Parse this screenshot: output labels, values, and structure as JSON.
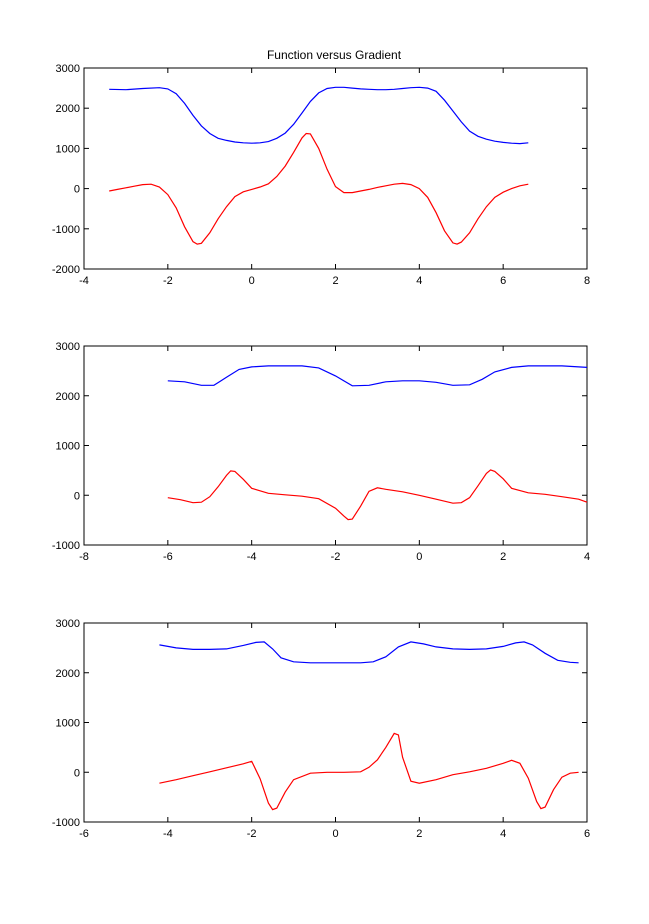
{
  "figure": {
    "title": "Function versus Gradient"
  },
  "colors": {
    "function_series": "#0000ff",
    "gradient_series": "#ff0000",
    "background": "#ffffff",
    "axes": "#000000"
  },
  "chart_data": [
    {
      "type": "line",
      "title": "Function versus Gradient",
      "xlabel": "",
      "ylabel": "",
      "xlim": [
        -4,
        8
      ],
      "ylim": [
        -2000,
        3000
      ],
      "xticks": [
        "-4",
        "-2",
        "0",
        "2",
        "4",
        "6",
        "8"
      ],
      "yticks": [
        "-2000",
        "-1000",
        "0",
        "1000",
        "2000",
        "3000"
      ],
      "grid": false,
      "legend": "none",
      "series": [
        {
          "color": "#0000ff",
          "x": [
            -3.4,
            -3.0,
            -2.6,
            -2.2,
            -2.0,
            -1.8,
            -1.6,
            -1.4,
            -1.2,
            -1.0,
            -0.8,
            -0.6,
            -0.4,
            -0.2,
            0.0,
            0.2,
            0.4,
            0.6,
            0.8,
            1.0,
            1.2,
            1.4,
            1.6,
            1.8,
            2.0,
            2.2,
            2.4,
            2.6,
            2.8,
            3.0,
            3.2,
            3.4,
            3.6,
            3.8,
            4.0,
            4.2,
            4.4,
            4.6,
            4.8,
            5.0,
            5.2,
            5.4,
            5.6,
            5.8,
            6.0,
            6.2,
            6.4,
            6.6
          ],
          "y": [
            2470,
            2460,
            2490,
            2510,
            2480,
            2360,
            2120,
            1820,
            1560,
            1370,
            1250,
            1200,
            1160,
            1140,
            1130,
            1140,
            1170,
            1250,
            1380,
            1600,
            1880,
            2170,
            2380,
            2490,
            2520,
            2520,
            2500,
            2480,
            2470,
            2460,
            2460,
            2470,
            2490,
            2510,
            2520,
            2500,
            2420,
            2200,
            1930,
            1660,
            1430,
            1300,
            1230,
            1180,
            1150,
            1130,
            1120,
            1140
          ]
        },
        {
          "color": "#ff0000",
          "x": [
            -3.4,
            -3.2,
            -3.0,
            -2.8,
            -2.6,
            -2.4,
            -2.2,
            -2.0,
            -1.8,
            -1.6,
            -1.4,
            -1.3,
            -1.2,
            -1.0,
            -0.8,
            -0.6,
            -0.4,
            -0.2,
            0.0,
            0.2,
            0.4,
            0.6,
            0.8,
            1.0,
            1.2,
            1.3,
            1.4,
            1.6,
            1.8,
            2.0,
            2.2,
            2.4,
            2.6,
            2.8,
            3.0,
            3.2,
            3.4,
            3.6,
            3.8,
            4.0,
            4.2,
            4.4,
            4.6,
            4.8,
            4.9,
            5.0,
            5.2,
            5.4,
            5.6,
            5.8,
            6.0,
            6.2,
            6.4,
            6.6
          ],
          "y": [
            -60,
            -20,
            20,
            60,
            100,
            110,
            40,
            -150,
            -480,
            -950,
            -1320,
            -1380,
            -1360,
            -1100,
            -750,
            -450,
            -200,
            -80,
            -20,
            40,
            120,
            300,
            560,
            900,
            1260,
            1370,
            1360,
            1000,
            480,
            50,
            -100,
            -100,
            -60,
            -20,
            30,
            70,
            110,
            130,
            100,
            0,
            -220,
            -600,
            -1050,
            -1350,
            -1380,
            -1330,
            -1100,
            -750,
            -450,
            -220,
            -90,
            0,
            70,
            110
          ]
        }
      ]
    },
    {
      "type": "line",
      "title": "",
      "xlabel": "",
      "ylabel": "",
      "xlim": [
        -8,
        4
      ],
      "ylim": [
        -1000,
        3000
      ],
      "xticks": [
        "-8",
        "-6",
        "-4",
        "-2",
        "0",
        "2",
        "4"
      ],
      "yticks": [
        "-1000",
        "0",
        "1000",
        "2000",
        "3000"
      ],
      "grid": false,
      "legend": "none",
      "series": [
        {
          "color": "#0000ff",
          "x": [
            -6.0,
            -5.6,
            -5.2,
            -4.9,
            -4.6,
            -4.3,
            -4.0,
            -3.6,
            -3.2,
            -2.8,
            -2.4,
            -2.0,
            -1.6,
            -1.2,
            -0.8,
            -0.4,
            0.0,
            0.4,
            0.8,
            1.2,
            1.5,
            1.8,
            2.2,
            2.6,
            3.0,
            3.4,
            3.8,
            4.0
          ],
          "y": [
            2300,
            2280,
            2210,
            2210,
            2370,
            2530,
            2580,
            2600,
            2600,
            2600,
            2560,
            2400,
            2200,
            2210,
            2280,
            2300,
            2300,
            2270,
            2210,
            2220,
            2330,
            2480,
            2570,
            2600,
            2600,
            2600,
            2580,
            2570
          ]
        },
        {
          "color": "#ff0000",
          "x": [
            -6.0,
            -5.7,
            -5.4,
            -5.2,
            -5.0,
            -4.8,
            -4.6,
            -4.5,
            -4.4,
            -4.2,
            -4.0,
            -3.6,
            -3.2,
            -2.8,
            -2.4,
            -2.0,
            -1.8,
            -1.7,
            -1.6,
            -1.4,
            -1.2,
            -1.0,
            -0.8,
            -0.4,
            0.0,
            0.4,
            0.8,
            1.0,
            1.2,
            1.4,
            1.6,
            1.7,
            1.8,
            2.0,
            2.2,
            2.6,
            3.0,
            3.4,
            3.8,
            4.0
          ],
          "y": [
            -50,
            -90,
            -150,
            -140,
            -30,
            170,
            400,
            490,
            480,
            320,
            140,
            40,
            10,
            -20,
            -70,
            -260,
            -420,
            -490,
            -480,
            -220,
            80,
            150,
            120,
            70,
            0,
            -80,
            -160,
            -150,
            -50,
            190,
            440,
            510,
            480,
            330,
            140,
            50,
            20,
            -30,
            -80,
            -140
          ]
        }
      ]
    },
    {
      "type": "line",
      "title": "",
      "xlabel": "",
      "ylabel": "",
      "xlim": [
        -6,
        6
      ],
      "ylim": [
        -1000,
        3000
      ],
      "xticks": [
        "-6",
        "-4",
        "-2",
        "0",
        "2",
        "4",
        "6"
      ],
      "yticks": [
        "-1000",
        "0",
        "1000",
        "2000",
        "3000"
      ],
      "grid": false,
      "legend": "none",
      "series": [
        {
          "color": "#0000ff",
          "x": [
            -4.2,
            -3.8,
            -3.4,
            -3.0,
            -2.6,
            -2.2,
            -1.9,
            -1.7,
            -1.5,
            -1.3,
            -1.0,
            -0.6,
            -0.2,
            0.2,
            0.6,
            0.9,
            1.2,
            1.5,
            1.8,
            2.1,
            2.4,
            2.8,
            3.2,
            3.6,
            4.0,
            4.3,
            4.5,
            4.7,
            5.0,
            5.3,
            5.6,
            5.8
          ],
          "y": [
            2560,
            2500,
            2470,
            2470,
            2480,
            2550,
            2610,
            2620,
            2480,
            2300,
            2220,
            2200,
            2200,
            2200,
            2200,
            2220,
            2320,
            2520,
            2620,
            2580,
            2520,
            2480,
            2470,
            2480,
            2530,
            2600,
            2620,
            2560,
            2390,
            2250,
            2210,
            2200
          ]
        },
        {
          "color": "#ff0000",
          "x": [
            -4.2,
            -3.8,
            -3.4,
            -3.0,
            -2.6,
            -2.2,
            -2.0,
            -1.8,
            -1.6,
            -1.5,
            -1.4,
            -1.2,
            -1.0,
            -0.6,
            -0.2,
            0.2,
            0.6,
            0.8,
            1.0,
            1.2,
            1.4,
            1.5,
            1.6,
            1.8,
            2.0,
            2.4,
            2.8,
            3.2,
            3.6,
            4.0,
            4.2,
            4.4,
            4.6,
            4.8,
            4.9,
            5.0,
            5.2,
            5.4,
            5.6,
            5.8
          ],
          "y": [
            -220,
            -150,
            -70,
            10,
            90,
            170,
            220,
            -130,
            -620,
            -750,
            -720,
            -400,
            -150,
            -20,
            0,
            0,
            10,
            100,
            250,
            500,
            780,
            750,
            300,
            -180,
            -220,
            -150,
            -50,
            10,
            80,
            180,
            240,
            180,
            -120,
            -590,
            -730,
            -700,
            -350,
            -100,
            -20,
            0
          ]
        }
      ]
    }
  ]
}
